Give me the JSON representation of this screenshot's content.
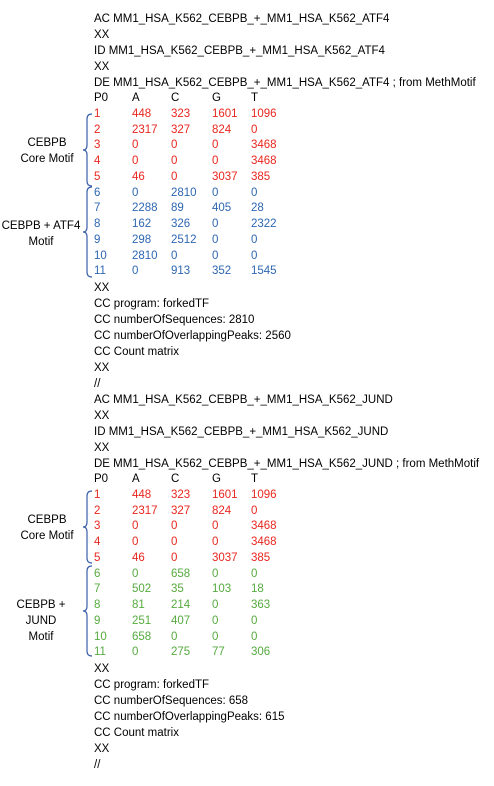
{
  "colors": {
    "core": "#e8261f",
    "atf4": "#2e67b1",
    "jund": "#56aa3f",
    "brace": "#3a5fa8"
  },
  "record1": {
    "ac": "AC MM1_HSA_K562_CEBPB_+_MM1_HSA_K562_ATF4",
    "xx1": "XX",
    "id": "ID MM1_HSA_K562_CEBPB_+_MM1_HSA_K562_ATF4",
    "xx2": "XX",
    "de": "DE MM1_HSA_K562_CEBPB_+_MM1_HSA_K562_ATF4 ; from MethMotif",
    "header": [
      "P0",
      "A",
      "C",
      "G",
      "T"
    ],
    "core_rows": [
      [
        "1",
        "448",
        "323",
        "1601",
        "1096"
      ],
      [
        "2",
        "2317",
        "327",
        "824",
        "0"
      ],
      [
        "3",
        "0",
        "0",
        "0",
        "3468"
      ],
      [
        "4",
        "0",
        "0",
        "0",
        "3468"
      ],
      [
        "5",
        "46",
        "0",
        "3037",
        "385"
      ]
    ],
    "partner_rows": [
      [
        "6",
        "0",
        "2810",
        "0",
        "0"
      ],
      [
        "7",
        "2288",
        "89",
        "405",
        "28"
      ],
      [
        "8",
        "162",
        "326",
        "0",
        "2322"
      ],
      [
        "9",
        "298",
        "2512",
        "0",
        "0"
      ],
      [
        "10",
        "2810",
        "0",
        "0",
        "0"
      ],
      [
        "11",
        "0",
        "913",
        "352",
        "1545"
      ]
    ],
    "xx3": "XX",
    "cc_program": "CC program: forkedTF",
    "cc_sequences": "CC numberOfSequences: 2810",
    "cc_peaks": "CC numberOfOverlappingPeaks: 2560",
    "cc_matrix": "CC Count matrix",
    "xx4": "XX",
    "end": "//",
    "core_label_1": "CEBPB",
    "core_label_2": "Core Motif",
    "partner_label_1": "CEBPB + ATF4",
    "partner_label_2": "Motif"
  },
  "record2": {
    "ac": "AC MM1_HSA_K562_CEBPB_+_MM1_HSA_K562_JUND",
    "xx1": "XX",
    "id": "ID MM1_HSA_K562_CEBPB_+_MM1_HSA_K562_JUND",
    "xx2": "XX",
    "de": "DE MM1_HSA_K562_CEBPB_+_MM1_HSA_K562_JUND ; from MethMotif",
    "header": [
      "P0",
      "A",
      "C",
      "G",
      "T"
    ],
    "core_rows": [
      [
        "1",
        "448",
        "323",
        "1601",
        "1096"
      ],
      [
        "2",
        "2317",
        "327",
        "824",
        "0"
      ],
      [
        "3",
        "0",
        "0",
        "0",
        "3468"
      ],
      [
        "4",
        "0",
        "0",
        "0",
        "3468"
      ],
      [
        "5",
        "46",
        "0",
        "3037",
        "385"
      ]
    ],
    "partner_rows": [
      [
        "6",
        "0",
        "658",
        "0",
        "0"
      ],
      [
        "7",
        "502",
        "35",
        "103",
        "18"
      ],
      [
        "8",
        "81",
        "214",
        "0",
        "363"
      ],
      [
        "9",
        "251",
        "407",
        "0",
        "0"
      ],
      [
        "10",
        "658",
        "0",
        "0",
        "0"
      ],
      [
        "11",
        "0",
        "275",
        "77",
        "306"
      ]
    ],
    "xx3": "XX",
    "cc_program": "CC program: forkedTF",
    "cc_sequences": "CC numberOfSequences: 658",
    "cc_peaks": "CC numberOfOverlappingPeaks: 615",
    "cc_matrix": "CC Count matrix",
    "xx4": "XX",
    "end": "//",
    "core_label_1": "CEBPB",
    "core_label_2": "Core Motif",
    "partner_label_1": "CEBPB + JUND",
    "partner_label_2": "Motif"
  }
}
